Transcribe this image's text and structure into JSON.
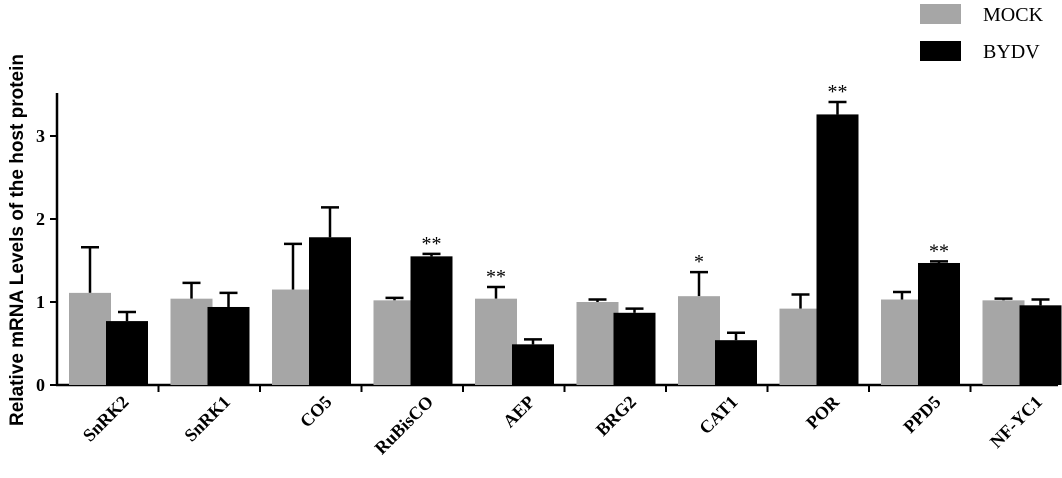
{
  "chart_data": {
    "type": "bar",
    "ylabel": "Relative mRNA Levels of the host protein",
    "ylim": [
      0,
      3.5
    ],
    "yticks": [
      0,
      1,
      2,
      3
    ],
    "categories": [
      "SnRK2",
      "SnRK1",
      "CO5",
      "RuBisCO",
      "AEP",
      "BRG2",
      "CAT1",
      "POR",
      "PPD5",
      "NF-YC1"
    ],
    "series": [
      {
        "name": "MOCK",
        "color": "#a6a6a6",
        "values": [
          1.11,
          1.04,
          1.15,
          1.02,
          1.04,
          1.0,
          1.07,
          0.92,
          1.03,
          1.02
        ],
        "errors": [
          0.55,
          0.19,
          0.55,
          0.03,
          0.14,
          0.03,
          0.29,
          0.17,
          0.09,
          0.02
        ],
        "sig": [
          "",
          "",
          "",
          "",
          "**",
          "",
          "*",
          "",
          "",
          ""
        ]
      },
      {
        "name": "BYDV",
        "color": "#000000",
        "values": [
          0.77,
          0.94,
          1.78,
          1.55,
          0.49,
          0.87,
          0.54,
          3.26,
          1.47,
          0.96
        ],
        "errors": [
          0.11,
          0.17,
          0.36,
          0.03,
          0.06,
          0.05,
          0.09,
          0.15,
          0.02,
          0.07
        ],
        "sig": [
          "",
          "",
          "",
          "**",
          "",
          "",
          "",
          "**",
          "**",
          ""
        ]
      }
    ],
    "legend": "top-right"
  }
}
